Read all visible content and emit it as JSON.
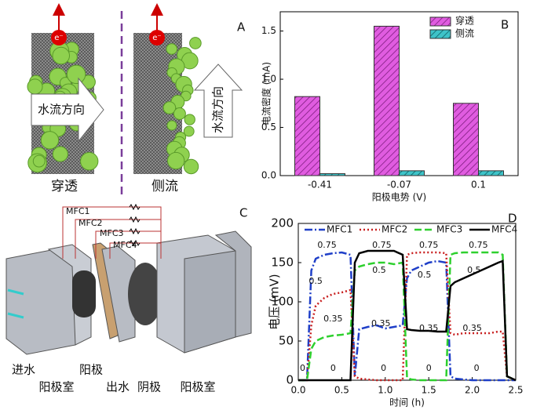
{
  "panel_a": {
    "label": "A",
    "electron": "e⁻",
    "flow": "水流方向",
    "captions": [
      "穿透",
      "侧流"
    ]
  },
  "panel_c": {
    "label": "C",
    "circuits": [
      "MFC1",
      "MFC2",
      "MFC3",
      "MFC4"
    ],
    "parts": [
      "进水",
      "阳极室",
      "阳极",
      "出水",
      "阴极",
      "阳极室"
    ]
  },
  "chart_data": [
    {
      "type": "bar",
      "panel_label": "B",
      "x_label": "阳极电势 (V)",
      "y_label": "电流密度 (mA)",
      "categories": [
        "-0.41",
        "-0.07",
        "0.1"
      ],
      "series": [
        {
          "name": "穿透",
          "color": "#e05ce0",
          "values": [
            0.82,
            1.55,
            0.75
          ]
        },
        {
          "name": "侧流",
          "color": "#3ec3c8",
          "values": [
            0.02,
            0.05,
            0.05
          ]
        }
      ],
      "ylim": [
        0,
        1.7
      ],
      "yticks": [
        {
          "value": 0,
          "label": "0.0"
        },
        0.5,
        {
          "value": 1,
          "label": "1.0"
        },
        1.5
      ],
      "legend": "upper-right"
    },
    {
      "type": "line",
      "panel_label": "D",
      "x_label": "时间 (h)",
      "y_label": "电压 (mV)",
      "x": [
        0,
        0.1,
        0.15,
        0.2,
        0.3,
        0.4,
        0.5,
        0.6,
        0.65,
        0.7,
        0.8,
        0.9,
        1.0,
        1.1,
        1.2,
        1.25,
        1.3,
        1.4,
        1.5,
        1.6,
        1.7,
        1.75,
        1.8,
        1.9,
        2.0,
        2.1,
        2.2,
        2.3,
        2.35,
        2.4,
        2.5
      ],
      "series": [
        {
          "name": "MFC1",
          "color": "#1f3fc8",
          "dash": "10,3,2,3",
          "values": [
            0,
            0,
            140,
            155,
            160,
            162,
            163,
            160,
            5,
            65,
            68,
            70,
            66,
            68,
            70,
            130,
            140,
            145,
            150,
            152,
            150,
            5,
            2,
            1,
            0,
            0,
            0,
            0,
            0,
            0,
            0
          ]
        },
        {
          "name": "MFC2",
          "color": "#c81e1e",
          "dash": "2,3",
          "values": [
            0,
            0,
            70,
            95,
            105,
            110,
            112,
            115,
            5,
            2,
            1,
            0,
            0,
            0,
            0,
            160,
            162,
            163,
            163,
            163,
            162,
            60,
            58,
            60,
            60,
            60,
            60,
            62,
            62,
            5,
            0
          ]
        },
        {
          "name": "MFC3",
          "color": "#2ed02e",
          "dash": "9,4",
          "values": [
            0,
            0,
            40,
            50,
            55,
            57,
            58,
            60,
            140,
            145,
            148,
            150,
            150,
            148,
            150,
            3,
            1,
            0,
            0,
            0,
            0,
            160,
            162,
            163,
            163,
            163,
            163,
            163,
            160,
            5,
            0
          ]
        },
        {
          "name": "MFC4",
          "color": "#000000",
          "dash": "",
          "values": [
            0,
            0,
            0,
            0,
            0,
            0,
            0,
            0,
            150,
            162,
            165,
            165,
            165,
            165,
            160,
            65,
            64,
            63,
            63,
            62,
            62,
            120,
            125,
            130,
            135,
            140,
            145,
            150,
            152,
            5,
            0
          ]
        }
      ],
      "xlim": [
        0,
        2.5
      ],
      "ylim": [
        0,
        200
      ],
      "xticks": [
        {
          "value": 0,
          "label": "0.0"
        },
        0.5,
        {
          "value": 1,
          "label": "1.0"
        },
        1.5,
        {
          "value": 2,
          "label": "2.0"
        },
        2.5
      ],
      "yticks": [
        0,
        50,
        100,
        150,
        200
      ],
      "annotations": [
        "0.75",
        "0.75",
        "0.75",
        "0.75",
        "0.5",
        "0.5",
        "0.5",
        "0.5",
        "0.35",
        "0.35",
        "0.35",
        "0.35",
        "0",
        "0",
        "0",
        "0",
        "0"
      ],
      "legend": "top"
    }
  ]
}
